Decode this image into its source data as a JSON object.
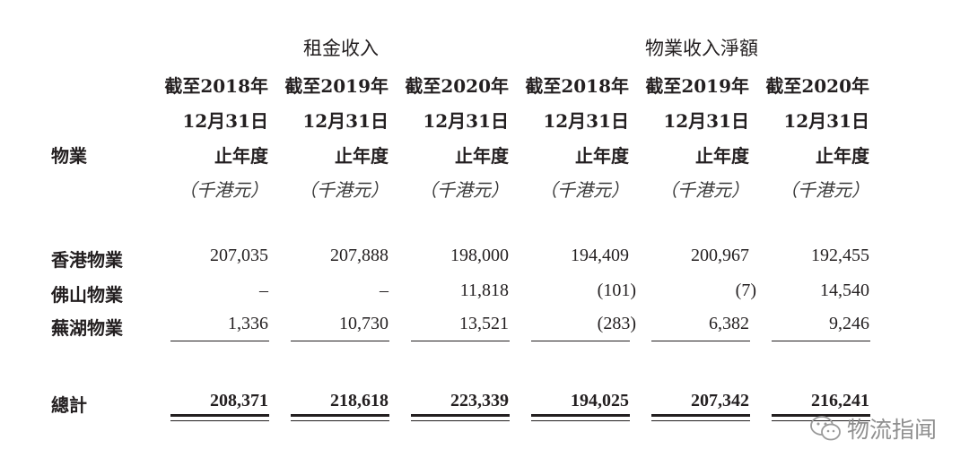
{
  "column_groups": [
    "租金收入",
    "物業收入淨額"
  ],
  "header": {
    "row_label": "物業",
    "columns": [
      {
        "period": "截至2018年",
        "date": "12月31日",
        "suffix": "止年度",
        "unit": "（千港元）"
      },
      {
        "period": "截至2019年",
        "date": "12月31日",
        "suffix": "止年度",
        "unit": "（千港元）"
      },
      {
        "period": "截至2020年",
        "date": "12月31日",
        "suffix": "止年度",
        "unit": "（千港元）"
      },
      {
        "period": "截至2018年",
        "date": "12月31日",
        "suffix": "止年度",
        "unit": "（千港元）"
      },
      {
        "period": "截至2019年",
        "date": "12月31日",
        "suffix": "止年度",
        "unit": "（千港元）"
      },
      {
        "period": "截至2020年",
        "date": "12月31日",
        "suffix": "止年度",
        "unit": "（千港元）"
      }
    ]
  },
  "rows": [
    {
      "label": "香港物業",
      "values": [
        "207,035",
        "207,888",
        "198,000",
        "194,409",
        "200,967",
        "192,455"
      ]
    },
    {
      "label": "佛山物業",
      "values": [
        "–",
        "–",
        "11,818",
        "(101)",
        "(7)",
        "14,540"
      ]
    },
    {
      "label": "蕪湖物業",
      "values": [
        "1,336",
        "10,730",
        "13,521",
        "(283)",
        "6,382",
        "9,246"
      ]
    }
  ],
  "total": {
    "label": "總計",
    "values": [
      "208,371",
      "218,618",
      "223,339",
      "194,025",
      "207,342",
      "216,241"
    ]
  },
  "watermark": {
    "text": "物流指闻",
    "icon": "wechat-icon"
  }
}
